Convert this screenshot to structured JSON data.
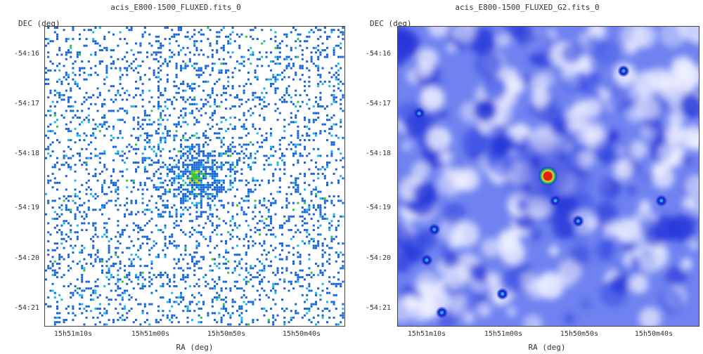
{
  "chart_data": [
    {
      "type": "heatmap",
      "title": "acis_E800-1500_FLUXED.fits_0",
      "xlabel": "RA (deg)",
      "ylabel": "DEC (deg)",
      "x_ticks": [
        "15h51m10s",
        "15h51m00s",
        "15h50m50s",
        "15h50m40s"
      ],
      "y_ticks": [
        "-54:16",
        "-54:17",
        "-54:18",
        "-54:19",
        "-54:20",
        "-54:21"
      ],
      "colormap": [
        "#ffffff",
        "#1565d8",
        "#19b8e8",
        "#32c832",
        "#e8c800"
      ],
      "background": "#ffffff",
      "sources": [
        {
          "ra": "15h50m54s",
          "dec": "-54:18:24",
          "peak": 1.0
        }
      ]
    },
    {
      "type": "heatmap",
      "title": "acis_E800-1500_FLUXED_G2.fits_0",
      "xlabel": "RA (deg)",
      "ylabel": "DEC (deg)",
      "x_ticks": [
        "15h51m10s",
        "15h51m00s",
        "15h50m50s",
        "15h50m40s"
      ],
      "y_ticks": [
        "-54:16",
        "-54:17",
        "-54:18",
        "-54:19",
        "-54:20",
        "-54:21"
      ],
      "colormap": [
        "#eef0ff",
        "#6f82f0",
        "#2233d8",
        "#22c060",
        "#f0e020",
        "#e02010"
      ],
      "background": "#6f82f0",
      "sources": [
        {
          "ra": "15h50m54s",
          "dec": "-54:18:24",
          "peak": 1.0
        },
        {
          "ra": "15h51m11s",
          "dec": "-54:17:10",
          "peak": 0.35
        },
        {
          "ra": "15h50m53s",
          "dec": "-54:18:53",
          "peak": 0.35
        },
        {
          "ra": "15h50m50s",
          "dec": "-54:19:17",
          "peak": 0.35
        },
        {
          "ra": "15h50m39s",
          "dec": "-54:18:53",
          "peak": 0.35
        },
        {
          "ra": "15h50m44s",
          "dec": "-54:16:20",
          "peak": 0.3
        },
        {
          "ra": "15h51m09s",
          "dec": "-54:19:27",
          "peak": 0.35
        },
        {
          "ra": "15h51m10s",
          "dec": "-54:20:03",
          "peak": 0.35
        },
        {
          "ra": "15h51m00s",
          "dec": "-54:20:43",
          "peak": 0.35
        },
        {
          "ra": "15h51m08s",
          "dec": "-54:21:05",
          "peak": 0.35
        }
      ]
    }
  ]
}
